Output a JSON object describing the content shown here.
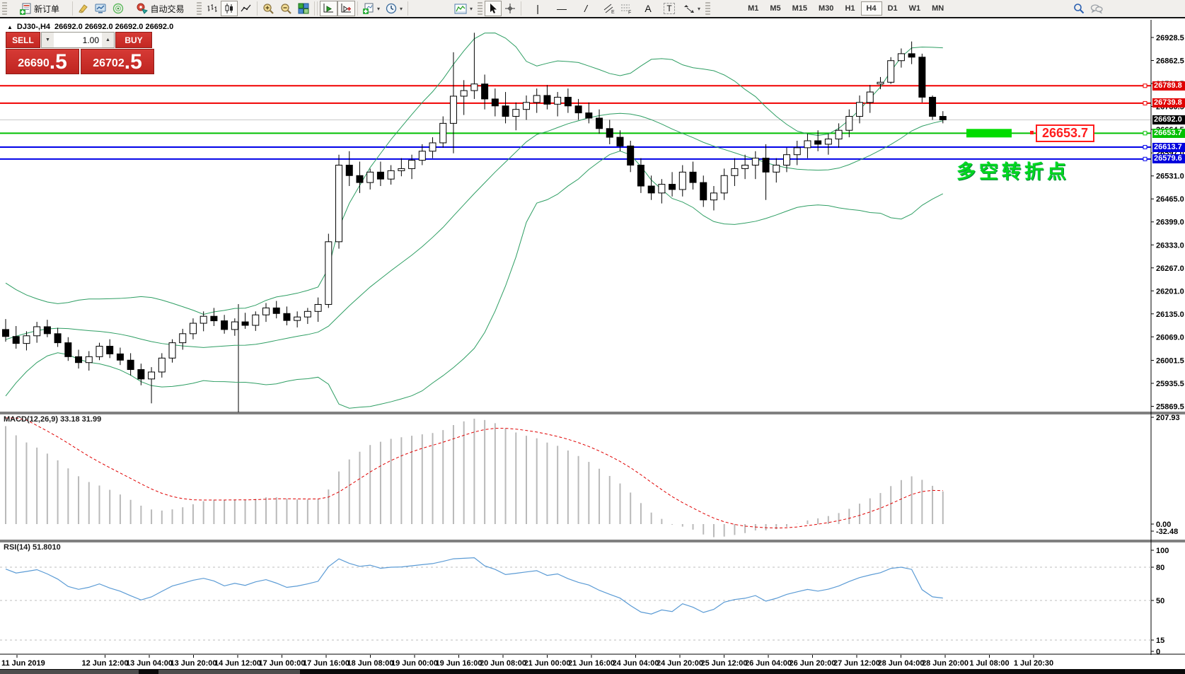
{
  "toolbar": {
    "new_order_label": "新订单",
    "auto_trading_label": "自动交易",
    "timeframes": [
      "M1",
      "M5",
      "M15",
      "M30",
      "H1",
      "H4",
      "D1",
      "W1",
      "MN"
    ],
    "active_timeframe": "H4",
    "glyphs": {
      "vline": "|",
      "hline": "—",
      "trend": "/",
      "text": "A",
      "label": "T",
      "caret": "▾"
    }
  },
  "chart": {
    "collapse_arrow": "▲",
    "title_symbol": "DJ30-,H4",
    "title_ohlc": "26692.0 26692.0 26692.0 26692.0"
  },
  "trade_panel": {
    "sell_label": "SELL",
    "buy_label": "BUY",
    "volume": "1.00",
    "sell_price_main": "26690",
    "sell_price_frac": ".5",
    "buy_price_main": "26702",
    "buy_price_frac": ".5"
  },
  "price_axis": {
    "ticks": [
      "26928.5",
      "26862.5",
      "26796.5",
      "26730.5",
      "26664.5",
      "26597.0",
      "26531.0",
      "26465.0",
      "26399.0",
      "26333.0",
      "26267.0",
      "26201.0",
      "26135.0",
      "26069.0",
      "26001.5",
      "25935.5",
      "25869.5"
    ]
  },
  "lines": [
    {
      "price": 26789.8,
      "label": "26789.8",
      "color": "#f00000",
      "chip": "#e00000",
      "width": 2,
      "handle": true
    },
    {
      "price": 26739.8,
      "label": "26739.8",
      "color": "#f00000",
      "chip": "#e00000",
      "width": 2,
      "handle": true
    },
    {
      "price": 26692.0,
      "label": "26692.0",
      "color": "#c8c8c8",
      "chip": "#000000",
      "width": 1,
      "handle": false
    },
    {
      "price": 26653.7,
      "label": "26653.7",
      "color": "#00c000",
      "chip": "#00c000",
      "width": 2,
      "handle": true
    },
    {
      "price": 26613.7,
      "label": "26613.7",
      "color": "#0000e8",
      "chip": "#0000dd",
      "width": 2,
      "handle": true
    },
    {
      "price": 26579.6,
      "label": "26579.6",
      "color": "#0000e8",
      "chip": "#0000dd",
      "width": 2,
      "handle": true
    }
  ],
  "macd": {
    "label": "MACD(12,26,9) 33.18 31.99",
    "axis": [
      "207.93",
      "0.00",
      "-32.48"
    ]
  },
  "rsi": {
    "label": "RSI(14) 51.8010",
    "axis": [
      "100",
      "80",
      "50",
      "15",
      "0"
    ],
    "levels": [
      80,
      50,
      15
    ]
  },
  "time_axis": [
    "11 Jun 2019",
    "12 Jun 12:00",
    "13 Jun 04:00",
    "13 Jun 20:00",
    "14 Jun 12:00",
    "17 Jun 00:00",
    "17 Jun 16:00",
    "18 Jun 08:00",
    "19 Jun 00:00",
    "19 Jun 16:00",
    "20 Jun 08:00",
    "21 Jun 00:00",
    "21 Jun 16:00",
    "24 Jun 04:00",
    "24 Jun 20:00",
    "25 Jun 12:00",
    "26 Jun 04:00",
    "26 Jun 20:00",
    "27 Jun 12:00",
    "28 Jun 04:00",
    "28 Jun 20:00",
    "1 Jul 08:00",
    "1 Jul 20:30"
  ],
  "annotations": {
    "turning_point": "多空转折点",
    "price_callout": "26653.7"
  },
  "chart_data": {
    "type": "candlestick",
    "symbol": "DJ30",
    "timeframe": "H4",
    "indicators": [
      "Bollinger Bands (20,2)",
      "MACD(12,26,9)",
      "RSI(14)"
    ],
    "price_range": [
      25869.5,
      26928.5
    ],
    "candles": [
      [
        26090,
        26120,
        26055,
        26070
      ],
      [
        26070,
        26100,
        26035,
        26050
      ],
      [
        26050,
        26085,
        26030,
        26072
      ],
      [
        26072,
        26112,
        26052,
        26098
      ],
      [
        26098,
        26118,
        26068,
        26078
      ],
      [
        26078,
        26095,
        26040,
        26052
      ],
      [
        26052,
        26068,
        26000,
        26012
      ],
      [
        26012,
        26032,
        25978,
        25995
      ],
      [
        25995,
        26028,
        25972,
        26012
      ],
      [
        26012,
        26052,
        26002,
        26042
      ],
      [
        26042,
        26062,
        26008,
        26020
      ],
      [
        26020,
        26038,
        25988,
        26002
      ],
      [
        26002,
        26022,
        25958,
        25975
      ],
      [
        25975,
        25992,
        25930,
        25948
      ],
      [
        25948,
        25982,
        25878,
        25968
      ],
      [
        25968,
        26022,
        25952,
        26008
      ],
      [
        26008,
        26062,
        25995,
        26052
      ],
      [
        26052,
        26092,
        26032,
        26078
      ],
      [
        26078,
        26122,
        26062,
        26108
      ],
      [
        26108,
        26142,
        26085,
        26128
      ],
      [
        26128,
        26152,
        26100,
        26115
      ],
      [
        26115,
        26132,
        26078,
        26090
      ],
      [
        26090,
        26122,
        26072,
        26112
      ],
      [
        26112,
        26138,
        26092,
        26102
      ],
      [
        26102,
        26142,
        26086,
        26132
      ],
      [
        26132,
        26166,
        26112,
        26152
      ],
      [
        26152,
        26172,
        26122,
        26136
      ],
      [
        26136,
        26156,
        26102,
        26116
      ],
      [
        26116,
        26142,
        26096,
        26126
      ],
      [
        26126,
        26152,
        26106,
        26142
      ],
      [
        26142,
        26182,
        26112,
        26162
      ],
      [
        26162,
        26365,
        26152,
        26342
      ],
      [
        26342,
        26592,
        26322,
        26562
      ],
      [
        26562,
        26602,
        26502,
        26532
      ],
      [
        26532,
        26572,
        26482,
        26512
      ],
      [
        26512,
        26552,
        26492,
        26542
      ],
      [
        26542,
        26572,
        26502,
        26522
      ],
      [
        26522,
        26562,
        26506,
        26546
      ],
      [
        26546,
        26582,
        26530,
        26552
      ],
      [
        26552,
        26592,
        26522,
        26576
      ],
      [
        26576,
        26622,
        26562,
        26602
      ],
      [
        26602,
        26642,
        26582,
        26626
      ],
      [
        26626,
        26702,
        26612,
        26682
      ],
      [
        26682,
        26886,
        26596,
        26760
      ],
      [
        26760,
        26806,
        26706,
        26776
      ],
      [
        26776,
        26942,
        26752,
        26795
      ],
      [
        26795,
        26822,
        26722,
        26752
      ],
      [
        26752,
        26782,
        26702,
        26732
      ],
      [
        26732,
        26772,
        26682,
        26702
      ],
      [
        26702,
        26742,
        26662,
        26722
      ],
      [
        26722,
        26762,
        26692,
        26742
      ],
      [
        26742,
        26782,
        26712,
        26762
      ],
      [
        26762,
        26792,
        26722,
        26737
      ],
      [
        26737,
        26772,
        26702,
        26757
      ],
      [
        26757,
        26782,
        26712,
        26732
      ],
      [
        26732,
        26752,
        26692,
        26712
      ],
      [
        26712,
        26742,
        26682,
        26697
      ],
      [
        26697,
        26722,
        26652,
        26667
      ],
      [
        26667,
        26692,
        26622,
        26642
      ],
      [
        26642,
        26662,
        26602,
        26617
      ],
      [
        26617,
        26632,
        26542,
        26562
      ],
      [
        26562,
        26582,
        26482,
        26502
      ],
      [
        26502,
        26532,
        26462,
        26482
      ],
      [
        26482,
        26522,
        26452,
        26507
      ],
      [
        26507,
        26542,
        26472,
        26492
      ],
      [
        26492,
        26562,
        26472,
        26542
      ],
      [
        26542,
        26572,
        26492,
        26512
      ],
      [
        26512,
        26532,
        26442,
        26462
      ],
      [
        26462,
        26502,
        26432,
        26482
      ],
      [
        26482,
        26552,
        26462,
        26532
      ],
      [
        26532,
        26582,
        26502,
        26552
      ],
      [
        26552,
        26592,
        26522,
        26562
      ],
      [
        26562,
        26602,
        26522,
        26582
      ],
      [
        26582,
        26622,
        26462,
        26542
      ],
      [
        26542,
        26582,
        26512,
        26562
      ],
      [
        26562,
        26612,
        26542,
        26592
      ],
      [
        26592,
        26632,
        26562,
        26612
      ],
      [
        26612,
        26652,
        26582,
        26632
      ],
      [
        26632,
        26662,
        26602,
        26622
      ],
      [
        26622,
        26652,
        26592,
        26637
      ],
      [
        26637,
        26682,
        26612,
        26662
      ],
      [
        26662,
        26722,
        26642,
        26702
      ],
      [
        26702,
        26762,
        26682,
        26742
      ],
      [
        26742,
        26792,
        26712,
        26772
      ],
      [
        26795,
        26815,
        26780,
        26800
      ],
      [
        26800,
        26872,
        26795,
        26862
      ],
      [
        26862,
        26897,
        26842,
        26882
      ],
      [
        26882,
        26917,
        26852,
        26872
      ],
      [
        26872,
        26882,
        26742,
        26757
      ],
      [
        26757,
        26762,
        26692,
        26702
      ],
      [
        26702,
        26717,
        26682,
        26692
      ]
    ]
  }
}
